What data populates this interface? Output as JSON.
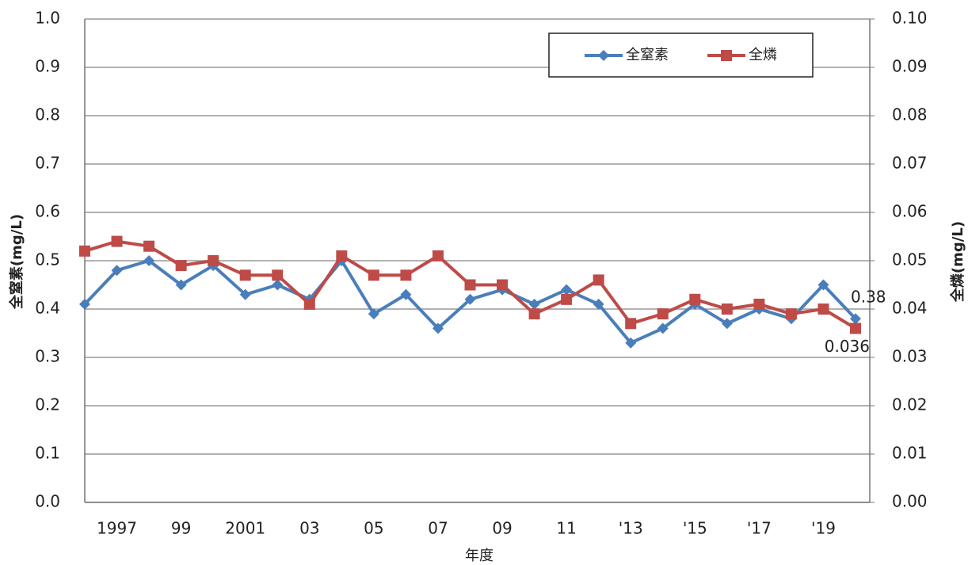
{
  "chart_data": {
    "type": "line",
    "y_label": "全窒素(mg/L)",
    "y2_label": "全燐(mg/L)",
    "x_label": "年度",
    "categories": [
      null,
      "1997",
      null,
      "99",
      null,
      "2001",
      null,
      "03",
      null,
      "05",
      null,
      "07",
      null,
      "09",
      null,
      "11",
      null,
      "'13",
      null,
      "'15",
      null,
      "'17",
      null,
      "'19",
      null
    ],
    "series": [
      {
        "name": "全窒素",
        "color": "#4a7ebb",
        "marker": "diamond",
        "axis": "y",
        "values": [
          0.41,
          0.48,
          0.5,
          0.45,
          0.49,
          0.43,
          0.45,
          0.42,
          0.5,
          0.39,
          0.43,
          0.36,
          0.42,
          0.44,
          0.41,
          0.44,
          0.41,
          0.33,
          0.36,
          0.41,
          0.37,
          0.4,
          0.38,
          0.45,
          0.38
        ]
      },
      {
        "name": "全燐",
        "color": "#be4b48",
        "marker": "square",
        "axis": "y2",
        "values": [
          0.052,
          0.054,
          0.053,
          0.049,
          0.05,
          0.047,
          0.047,
          0.041,
          0.051,
          0.047,
          0.047,
          0.051,
          0.045,
          0.045,
          0.039,
          0.042,
          0.046,
          0.037,
          0.039,
          0.042,
          0.04,
          0.041,
          0.039,
          0.04,
          0.036
        ]
      }
    ],
    "labeled_point": 24,
    "ylim": [
      0,
      1.0
    ],
    "yticks": [
      {
        "value": 0,
        "label": "0.0"
      },
      0.1,
      0.2,
      0.3,
      0.4,
      0.5,
      0.6,
      0.7,
      0.8,
      0.9,
      {
        "value": 1.0,
        "label": "1.0"
      }
    ],
    "y2lim": [
      0,
      0.1
    ],
    "y2ticks": [
      {
        "value": 0,
        "label": "0.00"
      },
      {
        "value": 0.01,
        "label": "0.01"
      },
      {
        "value": 0.02,
        "label": "0.02"
      },
      {
        "value": 0.03,
        "label": "0.03"
      },
      {
        "value": 0.04,
        "label": "0.04"
      },
      {
        "value": 0.05,
        "label": "0.05"
      },
      {
        "value": 0.06,
        "label": "0.06"
      },
      {
        "value": 0.07,
        "label": "0.07"
      },
      {
        "value": 0.08,
        "label": "0.08"
      },
      {
        "value": 0.09,
        "label": "0.09"
      },
      {
        "value": 0.1,
        "label": "0.10"
      }
    ],
    "grid": true,
    "legend": "top-right"
  }
}
